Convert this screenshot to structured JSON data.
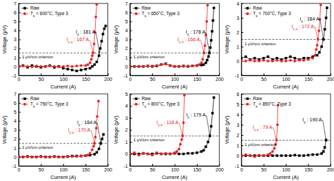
{
  "chart_data": [
    {
      "type": "line",
      "xlabel": "Current (A)",
      "ylabel": "Voltage (μV)",
      "xlim": [
        0,
        200
      ],
      "xticks": [
        0,
        50,
        100,
        150,
        200
      ],
      "ylim": [
        -1,
        7
      ],
      "yticks": [
        -1,
        0,
        1,
        2,
        3,
        4,
        5,
        6,
        7
      ],
      "legend": "upper left",
      "criterion": {
        "label": "1 μV/cm criterion",
        "y": 1.5
      },
      "annotations": [
        {
          "text": [
            "I",
            "c",
            " : 181 A"
          ],
          "x": 181,
          "y": 1.5,
          "color": "#000000"
        },
        {
          "text": [
            "I",
            "c,s",
            " : 167 A"
          ],
          "x": 167,
          "y": 1.5,
          "color": "#e8231f"
        }
      ],
      "series": [
        {
          "name": [
            "Raw"
          ],
          "color": "#000000",
          "marker": "square",
          "x": [
            0,
            10,
            20,
            30,
            40,
            50,
            60,
            70,
            80,
            90,
            100,
            110,
            120,
            130,
            140,
            150,
            160,
            165,
            170,
            175,
            180,
            183,
            186,
            189,
            192,
            195
          ],
          "values": [
            0,
            0.1,
            -0.1,
            0.1,
            0,
            -0.1,
            0,
            0.1,
            -0.1,
            0,
            -0.2,
            -0.3,
            -0.4,
            -0.5,
            -0.4,
            -0.3,
            -0.2,
            0,
            0.2,
            0.5,
            1.2,
            2.0,
            2.8,
            3.6,
            4.2,
            4.5
          ]
        },
        {
          "name": [
            "T",
            "s",
            " = 600°C, Type 3"
          ],
          "color": "#e8231f",
          "marker": "circle",
          "x": [
            0,
            10,
            20,
            30,
            40,
            50,
            60,
            70,
            80,
            90,
            100,
            110,
            120,
            130,
            140,
            150,
            155,
            160,
            163,
            165,
            167,
            169,
            171,
            173,
            175
          ],
          "values": [
            0,
            0.05,
            0,
            -0.05,
            0.05,
            0,
            0,
            0.05,
            0,
            -0.05,
            0,
            0.05,
            0,
            0.05,
            0.1,
            0.1,
            0.2,
            0.4,
            0.8,
            1.2,
            1.5,
            2.5,
            3.8,
            5.5,
            6.9
          ]
        }
      ]
    },
    {
      "type": "line",
      "xlabel": "Current (A)",
      "ylabel": "Voltage (μV)",
      "xlim": [
        0,
        200
      ],
      "xticks": [
        0,
        50,
        100,
        150,
        200
      ],
      "ylim": [
        -1,
        7
      ],
      "yticks": [
        -1,
        0,
        1,
        2,
        3,
        4,
        5,
        6,
        7
      ],
      "legend": "upper left",
      "criterion": {
        "label": "1 μV/cm criterion",
        "y": 1.5
      },
      "annotations": [
        {
          "text": [
            "I",
            "c",
            " : 178 A"
          ],
          "x": 178,
          "y": 1.5,
          "color": "#000000"
        },
        {
          "text": [
            "I",
            "c,s",
            " : 166 A"
          ],
          "x": 166,
          "y": 1.5,
          "color": "#e8231f"
        }
      ],
      "series": [
        {
          "name": [
            "Raw"
          ],
          "color": "#000000",
          "marker": "square",
          "x": [
            0,
            10,
            20,
            30,
            40,
            50,
            60,
            70,
            80,
            90,
            100,
            110,
            120,
            130,
            140,
            150,
            160,
            165,
            170,
            173,
            176,
            178,
            180,
            182,
            184,
            186,
            188
          ],
          "values": [
            0,
            0,
            0,
            0,
            0.05,
            0,
            0.05,
            0.2,
            0.3,
            0.1,
            0,
            0,
            0.05,
            0,
            0.05,
            0.1,
            0.15,
            0.2,
            0.4,
            0.7,
            1.1,
            1.5,
            2.1,
            2.9,
            3.9,
            5.1,
            6.5
          ]
        },
        {
          "name": [
            "T",
            "s",
            " = 650°C, Type 3"
          ],
          "color": "#e8231f",
          "marker": "circle",
          "x": [
            0,
            10,
            20,
            30,
            40,
            50,
            60,
            70,
            80,
            90,
            100,
            110,
            120,
            130,
            140,
            150,
            155,
            160,
            163,
            166,
            168,
            170,
            172,
            174
          ],
          "values": [
            0,
            0,
            0,
            0,
            0,
            0.05,
            0.1,
            0.2,
            0.25,
            0.1,
            0,
            0,
            0,
            0.05,
            0.05,
            0.1,
            0.2,
            0.4,
            0.8,
            1.5,
            2.3,
            3.5,
            5.0,
            6.8
          ]
        }
      ]
    },
    {
      "type": "line",
      "xlabel": "Current (A)",
      "ylabel": "Voltage (μV)",
      "xlim": [
        0,
        200
      ],
      "xticks": [
        0,
        50,
        100,
        150,
        200
      ],
      "ylim": [
        -1,
        4
      ],
      "yticks": [
        -1,
        0,
        1,
        2,
        3,
        4
      ],
      "legend": "upper left",
      "criterion": {
        "label": "1 μV/cm criterion",
        "y": 1.5
      },
      "annotations": [
        {
          "text": [
            "I",
            "c",
            " : 184 A"
          ],
          "x": 184,
          "y": 1.5,
          "color": "#000000"
        },
        {
          "text": [
            "I",
            "c,s",
            " : 172 A"
          ],
          "x": 172,
          "y": 1.5,
          "color": "#e8231f"
        }
      ],
      "series": [
        {
          "name": [
            "Raw"
          ],
          "color": "#000000",
          "marker": "square",
          "x": [
            0,
            10,
            20,
            30,
            40,
            50,
            60,
            70,
            80,
            90,
            100,
            110,
            120,
            130,
            140,
            150,
            160,
            170,
            175,
            180,
            184,
            187,
            190,
            192
          ],
          "values": [
            0.2,
            0.3,
            0.1,
            0.2,
            0.1,
            0.2,
            0.3,
            0.1,
            0.2,
            0.1,
            0.2,
            0.3,
            0.2,
            0.1,
            0.2,
            0.2,
            0.3,
            0.4,
            0.6,
            1.0,
            1.5,
            2.2,
            3.0,
            3.7
          ]
        },
        {
          "name": [
            "T",
            "s",
            " = 700°C, Type 3"
          ],
          "color": "#e8231f",
          "marker": "circle",
          "x": [
            0,
            10,
            20,
            30,
            40,
            50,
            60,
            70,
            80,
            90,
            100,
            110,
            120,
            130,
            140,
            150,
            160,
            165,
            168,
            170,
            172,
            174,
            176,
            178
          ],
          "values": [
            0,
            0,
            0.05,
            0,
            0,
            0.05,
            0,
            0,
            0.05,
            0,
            0,
            0.05,
            0,
            0.05,
            0.05,
            0.1,
            0.2,
            0.4,
            0.8,
            1.1,
            1.5,
            2.1,
            2.9,
            3.9
          ]
        }
      ]
    },
    {
      "type": "line",
      "xlabel": "Current (A)",
      "ylabel": "Voltage (μV)",
      "xlim": [
        0,
        200
      ],
      "xticks": [
        0,
        50,
        100,
        150,
        200
      ],
      "ylim": [
        -1,
        7
      ],
      "yticks": [
        -1,
        0,
        1,
        2,
        3,
        4,
        5,
        6,
        7
      ],
      "legend": "upper left",
      "criterion": {
        "label": "1 μV/cm criterion",
        "y": 1.5
      },
      "annotations": [
        {
          "text": [
            "I",
            "c",
            " : 184 A"
          ],
          "x": 184,
          "y": 1.5,
          "color": "#000000"
        },
        {
          "text": [
            "I",
            "c,s",
            " : 170 A"
          ],
          "x": 170,
          "y": 1.5,
          "color": "#e8231f"
        }
      ],
      "series": [
        {
          "name": [
            "Raw"
          ],
          "color": "#000000",
          "marker": "square",
          "x": [
            0,
            10,
            20,
            30,
            40,
            50,
            60,
            70,
            80,
            90,
            100,
            110,
            120,
            130,
            140,
            150,
            160,
            170,
            175,
            180,
            184,
            187,
            190
          ],
          "values": [
            0,
            0,
            0.05,
            0,
            0,
            0.05,
            0,
            0,
            0.05,
            0,
            0,
            0.05,
            0.1,
            0.1,
            0.1,
            0.15,
            0.2,
            0.3,
            0.5,
            0.9,
            1.5,
            2.0,
            2.5
          ]
        },
        {
          "name": [
            "T",
            "s",
            " = 750°C, Type 3"
          ],
          "color": "#e8231f",
          "marker": "circle",
          "x": [
            0,
            10,
            20,
            30,
            40,
            50,
            60,
            70,
            80,
            90,
            100,
            110,
            120,
            130,
            140,
            150,
            155,
            160,
            165,
            168,
            170,
            172,
            174,
            176,
            179
          ],
          "values": [
            0,
            0,
            0,
            0,
            0,
            0,
            0,
            0,
            0,
            0,
            0,
            0,
            0.05,
            0.05,
            0.1,
            0.15,
            0.2,
            0.4,
            0.8,
            1.2,
            1.5,
            2.2,
            3.2,
            4.5,
            6.2
          ]
        }
      ]
    },
    {
      "type": "line",
      "xlabel": "Current (A)",
      "ylabel": "Voltage (μV)",
      "xlim": [
        0,
        200
      ],
      "xticks": [
        0,
        50,
        100,
        150,
        200
      ],
      "ylim": [
        -1,
        5
      ],
      "yticks": [
        -1,
        0,
        1,
        2,
        3,
        4,
        5
      ],
      "legend": "upper left",
      "criterion": {
        "label": "1 μV/cm criterion",
        "y": 1.5
      },
      "annotations": [
        {
          "text": [
            "I",
            "c",
            " : 179 A"
          ],
          "x": 179,
          "y": 1.5,
          "color": "#000000"
        },
        {
          "text": [
            "I",
            "c,s",
            " : 118 A"
          ],
          "x": 118,
          "y": 1.5,
          "color": "#e8231f"
        }
      ],
      "series": [
        {
          "name": [
            "Raw"
          ],
          "color": "#000000",
          "marker": "square",
          "x": [
            0,
            10,
            20,
            30,
            40,
            50,
            60,
            70,
            80,
            90,
            100,
            110,
            120,
            130,
            140,
            150,
            160,
            165,
            170,
            175,
            179,
            182,
            185,
            188
          ],
          "values": [
            0,
            0,
            0,
            0.05,
            0,
            0,
            0.05,
            0,
            0,
            0,
            0.05,
            0,
            0,
            0.05,
            0.05,
            0.1,
            0.2,
            0.3,
            0.6,
            1.0,
            1.5,
            2.3,
            3.4,
            4.7
          ]
        },
        {
          "name": [
            "T",
            "s",
            " = 800°C, Type 3"
          ],
          "color": "#e8231f",
          "marker": "circle",
          "x": [
            0,
            10,
            20,
            30,
            40,
            50,
            60,
            70,
            80,
            90,
            100,
            105,
            110,
            113,
            116,
            118,
            120,
            122
          ],
          "values": [
            0,
            0.1,
            -0.1,
            0.05,
            0,
            -0.1,
            0.1,
            0,
            0.05,
            0,
            0.1,
            0.2,
            0.4,
            0.8,
            1.2,
            1.5,
            2.6,
            4.9
          ]
        }
      ]
    },
    {
      "type": "line",
      "xlabel": "Current (A)",
      "ylabel": "Voltage (μV)",
      "xlim": [
        0,
        200
      ],
      "xticks": [
        0,
        50,
        100,
        150,
        200
      ],
      "ylim": [
        -1,
        6
      ],
      "yticks": [
        -1,
        0,
        1,
        2,
        3,
        4,
        5,
        6
      ],
      "legend": "upper left",
      "criterion": {
        "label": "1 μV/cm criterion",
        "y": 1.5
      },
      "annotations": [
        {
          "text": [
            "I",
            "c",
            " : 190 A"
          ],
          "x": 190,
          "y": 1.5,
          "color": "#000000"
        },
        {
          "text": [
            "I",
            "c,s",
            " : 79 A"
          ],
          "x": 79,
          "y": 1.5,
          "color": "#e8231f"
        }
      ],
      "series": [
        {
          "name": [
            "Raw"
          ],
          "color": "#000000",
          "marker": "square",
          "x": [
            0,
            10,
            20,
            30,
            40,
            50,
            60,
            70,
            80,
            90,
            100,
            110,
            120,
            130,
            140,
            150,
            160,
            170,
            180,
            184,
            187,
            190
          ],
          "values": [
            0,
            0,
            0,
            0,
            0,
            0,
            0,
            0,
            0,
            0,
            0,
            0,
            0.05,
            0,
            0,
            0.05,
            0.1,
            0.1,
            0.2,
            0.4,
            0.8,
            1.5
          ]
        },
        {
          "name": [
            "T",
            "s",
            " = 850°C, Type 3"
          ],
          "color": "#e8231f",
          "marker": "circle",
          "x": [
            0,
            10,
            20,
            30,
            40,
            50,
            60,
            65,
            70,
            74,
            77,
            79,
            81,
            82
          ],
          "values": [
            0,
            0.1,
            0,
            -0.1,
            0.05,
            0,
            0.1,
            0.2,
            0.4,
            0.7,
            1.1,
            1.5,
            3.0,
            4.9
          ]
        }
      ]
    }
  ]
}
